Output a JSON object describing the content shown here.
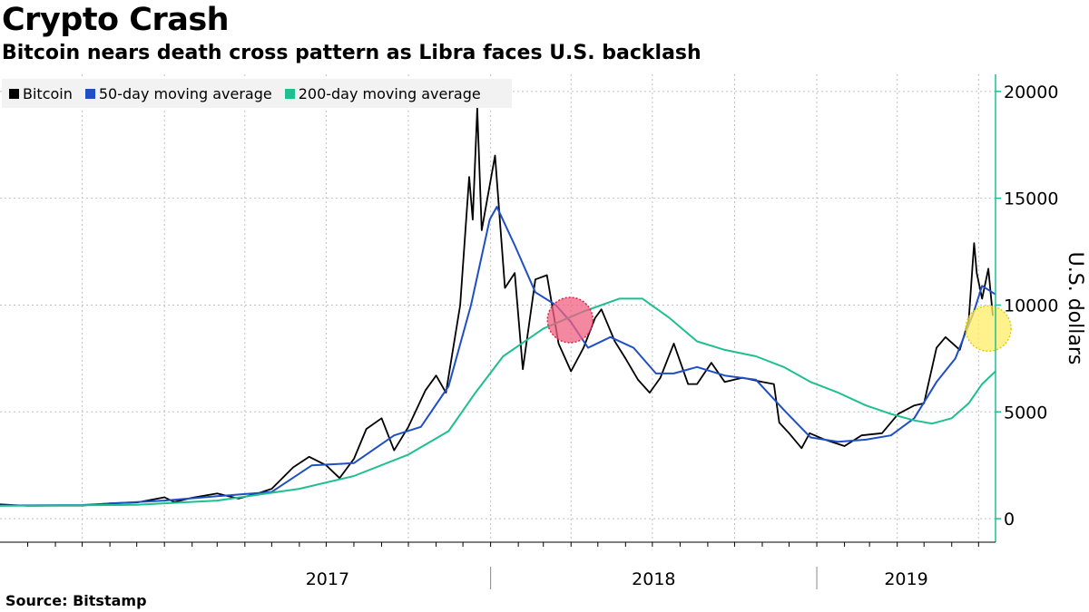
{
  "header": {
    "title": "Crypto Crash",
    "subtitle": "Bitcoin nears death cross pattern as Libra faces U.S. backlash"
  },
  "footer": {
    "source": "Source: Bitstamp"
  },
  "colors": {
    "bitcoin": "#000000",
    "ma50": "#1f4fc4",
    "ma200": "#1fbf8f",
    "axis": "#1fbf8f",
    "grid": "#c0c0c0",
    "red_marker": "#f06080",
    "yellow_marker": "#ffee66"
  },
  "chart_data": {
    "type": "line",
    "title": "Crypto Crash",
    "subtitle": "Bitcoin nears death cross pattern as Libra faces U.S. backlash",
    "ylabel": "U.S. dollars",
    "xlabel": "",
    "ylim": [
      -1100,
      20800
    ],
    "xlim": [
      "2016-07-01",
      "2019-07-20"
    ],
    "yticks": [
      0,
      5000,
      10000,
      15000,
      20000
    ],
    "year_labels": [
      "2017",
      "2018",
      "2019"
    ],
    "grid": true,
    "legend_position": "top-left",
    "series": [
      {
        "name": "Bitcoin",
        "color": "#000000",
        "points": [
          [
            "2016-07-01",
            670
          ],
          [
            "2016-08-01",
            600
          ],
          [
            "2016-09-01",
            610
          ],
          [
            "2016-10-01",
            615
          ],
          [
            "2016-11-01",
            720
          ],
          [
            "2016-12-01",
            760
          ],
          [
            "2017-01-01",
            1000
          ],
          [
            "2017-01-12",
            780
          ],
          [
            "2017-02-01",
            980
          ],
          [
            "2017-03-01",
            1180
          ],
          [
            "2017-03-25",
            940
          ],
          [
            "2017-04-15",
            1180
          ],
          [
            "2017-05-01",
            1400
          ],
          [
            "2017-05-25",
            2400
          ],
          [
            "2017-06-12",
            2900
          ],
          [
            "2017-07-01",
            2500
          ],
          [
            "2017-07-16",
            1900
          ],
          [
            "2017-08-01",
            2800
          ],
          [
            "2017-08-15",
            4200
          ],
          [
            "2017-09-01",
            4700
          ],
          [
            "2017-09-15",
            3200
          ],
          [
            "2017-10-01",
            4300
          ],
          [
            "2017-10-20",
            6000
          ],
          [
            "2017-11-01",
            6700
          ],
          [
            "2017-11-12",
            5900
          ],
          [
            "2017-11-28",
            10000
          ],
          [
            "2017-12-08",
            16000
          ],
          [
            "2017-12-12",
            14000
          ],
          [
            "2017-12-17",
            19200
          ],
          [
            "2017-12-22",
            13500
          ],
          [
            "2018-01-06",
            17000
          ],
          [
            "2018-01-17",
            10800
          ],
          [
            "2018-01-28",
            11500
          ],
          [
            "2018-02-06",
            7000
          ],
          [
            "2018-02-20",
            11200
          ],
          [
            "2018-03-05",
            11400
          ],
          [
            "2018-03-18",
            8200
          ],
          [
            "2018-04-01",
            6900
          ],
          [
            "2018-04-15",
            8000
          ],
          [
            "2018-04-28",
            9400
          ],
          [
            "2018-05-05",
            9800
          ],
          [
            "2018-05-20",
            8300
          ],
          [
            "2018-06-01",
            7500
          ],
          [
            "2018-06-15",
            6500
          ],
          [
            "2018-06-28",
            5900
          ],
          [
            "2018-07-10",
            6600
          ],
          [
            "2018-07-25",
            8200
          ],
          [
            "2018-08-10",
            6300
          ],
          [
            "2018-08-20",
            6300
          ],
          [
            "2018-09-05",
            7300
          ],
          [
            "2018-09-20",
            6400
          ],
          [
            "2018-10-10",
            6600
          ],
          [
            "2018-11-01",
            6400
          ],
          [
            "2018-11-14",
            6300
          ],
          [
            "2018-11-20",
            4500
          ],
          [
            "2018-12-01",
            4000
          ],
          [
            "2018-12-15",
            3300
          ],
          [
            "2018-12-24",
            4000
          ],
          [
            "2019-01-10",
            3700
          ],
          [
            "2019-02-01",
            3400
          ],
          [
            "2019-02-20",
            3900
          ],
          [
            "2019-03-15",
            4000
          ],
          [
            "2019-04-02",
            4900
          ],
          [
            "2019-04-20",
            5300
          ],
          [
            "2019-05-01",
            5400
          ],
          [
            "2019-05-15",
            8000
          ],
          [
            "2019-05-25",
            8500
          ],
          [
            "2019-06-10",
            7900
          ],
          [
            "2019-06-20",
            9300
          ],
          [
            "2019-06-26",
            12900
          ],
          [
            "2019-06-29",
            11500
          ],
          [
            "2019-07-05",
            10300
          ],
          [
            "2019-07-12",
            11700
          ],
          [
            "2019-07-17",
            9500
          ]
        ]
      },
      {
        "name": "50-day moving average",
        "color": "#1f4fc4",
        "points": [
          [
            "2016-07-01",
            620
          ],
          [
            "2016-10-01",
            640
          ],
          [
            "2017-01-01",
            850
          ],
          [
            "2017-03-01",
            1050
          ],
          [
            "2017-05-01",
            1250
          ],
          [
            "2017-06-15",
            2500
          ],
          [
            "2017-08-01",
            2600
          ],
          [
            "2017-09-15",
            3900
          ],
          [
            "2017-10-15",
            4300
          ],
          [
            "2017-11-15",
            6200
          ],
          [
            "2017-12-10",
            10000
          ],
          [
            "2017-12-31",
            14000
          ],
          [
            "2018-01-08",
            14600
          ],
          [
            "2018-01-28",
            12800
          ],
          [
            "2018-02-20",
            10600
          ],
          [
            "2018-03-15",
            10000
          ],
          [
            "2018-04-01",
            9200
          ],
          [
            "2018-04-20",
            8000
          ],
          [
            "2018-05-15",
            8500
          ],
          [
            "2018-06-10",
            8000
          ],
          [
            "2018-07-05",
            6800
          ],
          [
            "2018-07-25",
            6800
          ],
          [
            "2018-08-20",
            7100
          ],
          [
            "2018-09-20",
            6700
          ],
          [
            "2018-10-25",
            6500
          ],
          [
            "2018-11-25",
            5100
          ],
          [
            "2018-12-25",
            3800
          ],
          [
            "2019-01-25",
            3600
          ],
          [
            "2019-02-25",
            3700
          ],
          [
            "2019-03-25",
            3900
          ],
          [
            "2019-04-20",
            4700
          ],
          [
            "2019-05-15",
            6400
          ],
          [
            "2019-06-05",
            7500
          ],
          [
            "2019-06-25",
            9600
          ],
          [
            "2019-07-05",
            10900
          ],
          [
            "2019-07-20",
            10500
          ]
        ]
      },
      {
        "name": "200-day moving average",
        "color": "#1fbf8f",
        "points": [
          [
            "2016-07-01",
            600
          ],
          [
            "2016-12-01",
            650
          ],
          [
            "2017-03-01",
            850
          ],
          [
            "2017-06-01",
            1400
          ],
          [
            "2017-08-01",
            2000
          ],
          [
            "2017-10-01",
            3000
          ],
          [
            "2017-11-15",
            4100
          ],
          [
            "2017-12-15",
            5900
          ],
          [
            "2018-01-15",
            7600
          ],
          [
            "2018-03-01",
            8900
          ],
          [
            "2018-04-15",
            9700
          ],
          [
            "2018-05-25",
            10300
          ],
          [
            "2018-06-20",
            10300
          ],
          [
            "2018-07-20",
            9400
          ],
          [
            "2018-08-20",
            8300
          ],
          [
            "2018-09-20",
            7900
          ],
          [
            "2018-10-25",
            7600
          ],
          [
            "2018-11-25",
            7100
          ],
          [
            "2018-12-25",
            6400
          ],
          [
            "2019-01-25",
            5900
          ],
          [
            "2019-02-25",
            5300
          ],
          [
            "2019-03-25",
            4900
          ],
          [
            "2019-04-20",
            4600
          ],
          [
            "2019-05-10",
            4450
          ],
          [
            "2019-06-01",
            4700
          ],
          [
            "2019-06-20",
            5400
          ],
          [
            "2019-07-05",
            6300
          ],
          [
            "2019-07-20",
            6900
          ]
        ]
      }
    ],
    "annotations": [
      {
        "date": "2018-03-31",
        "value": 9300,
        "color": "#f06080"
      },
      {
        "date": "2019-07-12",
        "value": 8900,
        "color": "#ffee66"
      }
    ]
  }
}
